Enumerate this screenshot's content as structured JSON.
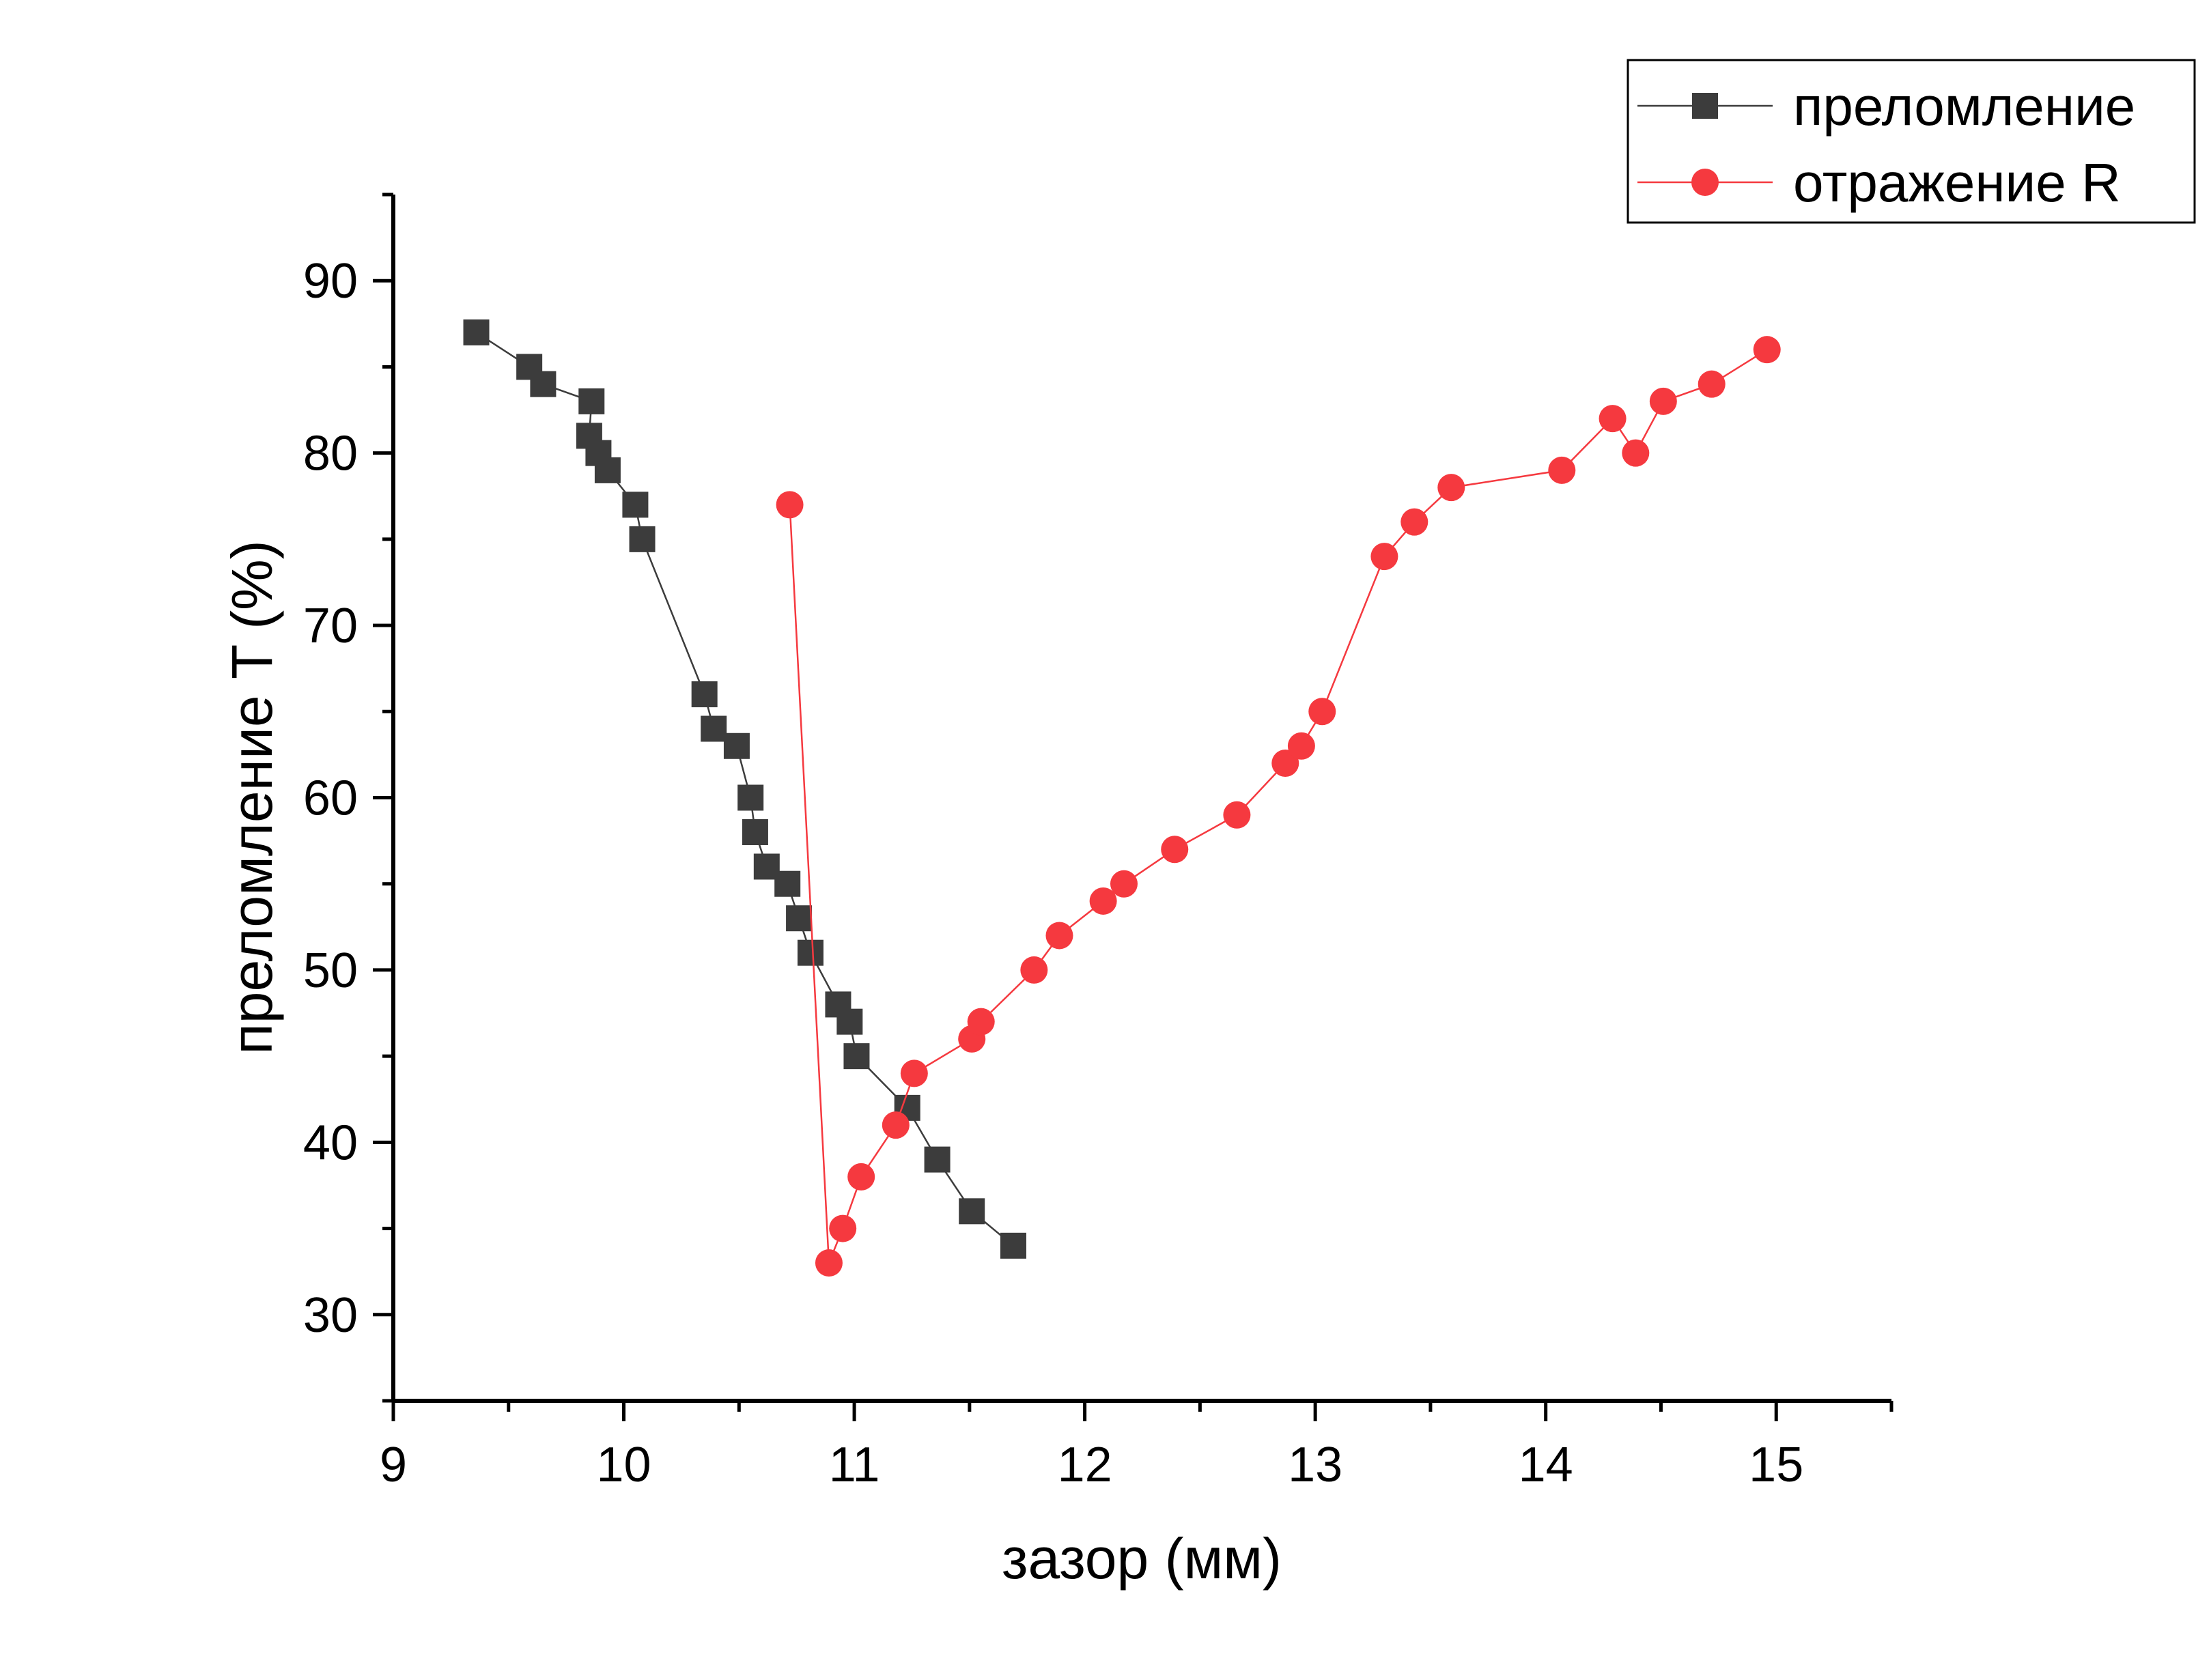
{
  "chart_data": {
    "type": "scatter",
    "xlabel": "зазор (мм)",
    "ylabel": "преломление T (%)",
    "xlim": [
      9,
      15.5
    ],
    "ylim": [
      25,
      95
    ],
    "x_ticks": [
      9,
      10,
      11,
      12,
      13,
      14,
      15
    ],
    "y_ticks": [
      30,
      40,
      50,
      60,
      70,
      80,
      90
    ],
    "x_tick_labels": [
      "9",
      "10",
      "11",
      "12",
      "13",
      "14",
      "15"
    ],
    "y_tick_labels": [
      "30",
      "40",
      "50",
      "60",
      "70",
      "80",
      "90"
    ],
    "grid": false,
    "legend_position": "top-right",
    "series": [
      {
        "name": "преломление",
        "marker": "square",
        "color": "#3c3c3c",
        "points": [
          {
            "x": 9.36,
            "y": 87
          },
          {
            "x": 9.59,
            "y": 85
          },
          {
            "x": 9.65,
            "y": 84
          },
          {
            "x": 9.86,
            "y": 83
          },
          {
            "x": 9.85,
            "y": 81
          },
          {
            "x": 9.89,
            "y": 80
          },
          {
            "x": 9.93,
            "y": 79
          },
          {
            "x": 10.05,
            "y": 77
          },
          {
            "x": 10.08,
            "y": 75
          },
          {
            "x": 10.35,
            "y": 66
          },
          {
            "x": 10.39,
            "y": 64
          },
          {
            "x": 10.49,
            "y": 63
          },
          {
            "x": 10.55,
            "y": 60
          },
          {
            "x": 10.57,
            "y": 58
          },
          {
            "x": 10.62,
            "y": 56
          },
          {
            "x": 10.71,
            "y": 55
          },
          {
            "x": 10.76,
            "y": 53
          },
          {
            "x": 10.81,
            "y": 51
          },
          {
            "x": 10.93,
            "y": 48
          },
          {
            "x": 10.98,
            "y": 47
          },
          {
            "x": 11.01,
            "y": 45
          },
          {
            "x": 11.23,
            "y": 42
          },
          {
            "x": 11.36,
            "y": 39
          },
          {
            "x": 11.51,
            "y": 36
          },
          {
            "x": 11.69,
            "y": 34
          }
        ]
      },
      {
        "name": "отражение R",
        "marker": "circle",
        "color": "#f5393f",
        "points": [
          {
            "x": 10.72,
            "y": 77
          },
          {
            "x": 10.89,
            "y": 33
          },
          {
            "x": 10.95,
            "y": 35
          },
          {
            "x": 11.03,
            "y": 38
          },
          {
            "x": 11.18,
            "y": 41
          },
          {
            "x": 11.26,
            "y": 44
          },
          {
            "x": 11.51,
            "y": 46
          },
          {
            "x": 11.55,
            "y": 47
          },
          {
            "x": 11.78,
            "y": 50
          },
          {
            "x": 11.89,
            "y": 52
          },
          {
            "x": 12.08,
            "y": 54
          },
          {
            "x": 12.17,
            "y": 55
          },
          {
            "x": 12.39,
            "y": 57
          },
          {
            "x": 12.66,
            "y": 59
          },
          {
            "x": 12.87,
            "y": 62
          },
          {
            "x": 12.94,
            "y": 63
          },
          {
            "x": 13.03,
            "y": 65
          },
          {
            "x": 13.3,
            "y": 74
          },
          {
            "x": 13.43,
            "y": 76
          },
          {
            "x": 13.59,
            "y": 78
          },
          {
            "x": 14.07,
            "y": 79
          },
          {
            "x": 14.29,
            "y": 82
          },
          {
            "x": 14.39,
            "y": 80
          },
          {
            "x": 14.51,
            "y": 83
          },
          {
            "x": 14.72,
            "y": 84
          },
          {
            "x": 14.96,
            "y": 86
          }
        ]
      }
    ]
  }
}
